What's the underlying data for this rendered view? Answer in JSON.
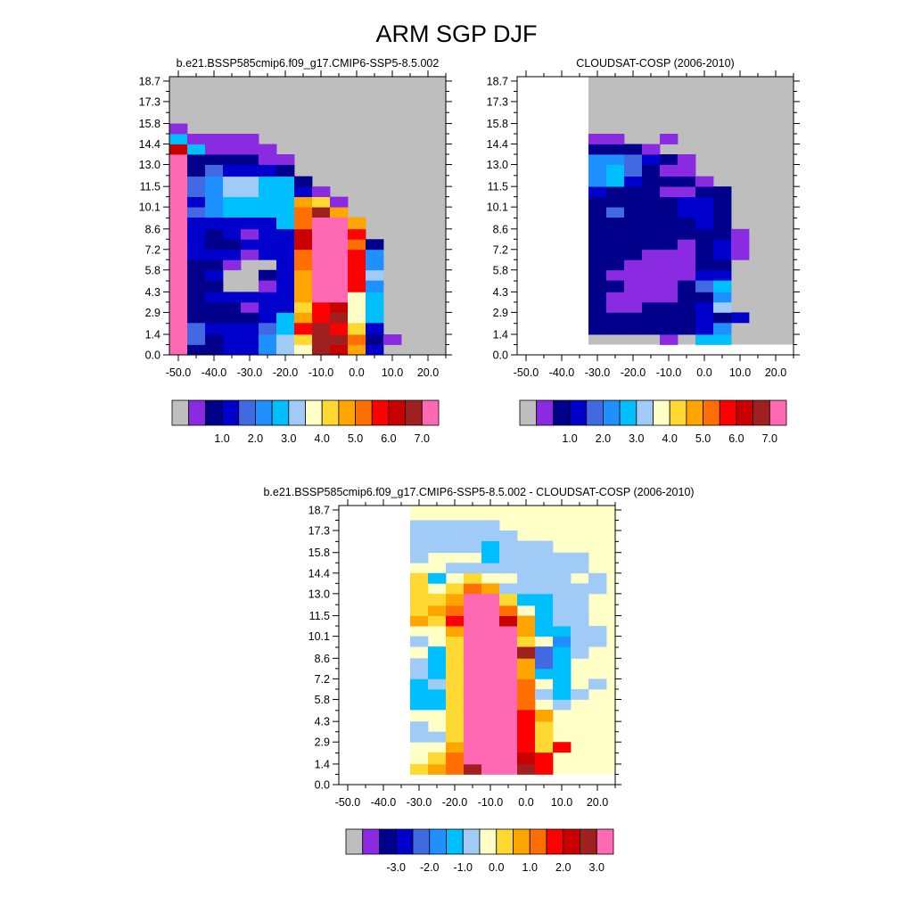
{
  "title": "ARM SGP DJF",
  "colors": {
    "missing": "#bebebe",
    "palette": [
      "#bebebe",
      "#8a2be2",
      "#00008b",
      "#0000cd",
      "#4169e1",
      "#1e90ff",
      "#00bfff",
      "#a0cbf6",
      "#ffffc8",
      "#ffd932",
      "#ffa500",
      "#ff6e00",
      "#ff0000",
      "#c80000",
      "#a02020",
      "#ff69b4"
    ]
  },
  "chart_data": [
    {
      "type": "heatmap",
      "title": "b.e21.BSSP585cmip6.f09_g17.CMIP6-SSP5-8.5.002",
      "xticks": [
        "-50.0",
        "-40.0",
        "-30.0",
        "-20.0",
        "-10.0",
        "0.0",
        "10.0",
        "20.0"
      ],
      "yticks": [
        "18.7",
        "17.3",
        "15.8",
        "14.4",
        "13.0",
        "11.5",
        "10.1",
        "8.6",
        "7.2",
        "5.8",
        "4.3",
        "2.9",
        "1.4",
        "0.0"
      ],
      "xlim": [
        -52.5,
        25.0
      ],
      "ylim": [
        0.0,
        19.0
      ],
      "colorbar": {
        "labels": [
          "1.0",
          "2.0",
          "3.0",
          "4.0",
          "5.0",
          "6.0",
          "7.0"
        ],
        "levels": [
          0.5,
          1.0,
          1.5,
          2.0,
          2.5,
          3.0,
          3.5,
          4.0,
          4.5,
          5.0,
          5.5,
          6.0,
          6.5,
          7.0
        ]
      },
      "x_edges": [
        -52.5,
        -47.5,
        -42.5,
        -37.5,
        -32.5,
        -27.5,
        -22.5,
        -17.5,
        -12.5,
        -7.5,
        -2.5,
        2.5,
        7.5,
        12.5,
        17.5,
        22.5,
        25.0
      ],
      "y_edges": [
        0.0,
        0.7,
        1.4,
        2.2,
        2.9,
        3.6,
        4.3,
        5.1,
        5.8,
        6.5,
        7.2,
        7.9,
        8.6,
        9.4,
        10.1,
        10.8,
        11.5,
        12.2,
        13.0,
        13.7,
        14.4,
        15.1,
        15.8,
        16.6,
        17.3,
        18.0,
        18.7,
        19.0
      ],
      "fill_value": 0,
      "rows": [
        [
          15,
          2,
          2,
          3,
          3,
          5,
          7,
          8,
          14,
          13,
          10,
          3,
          0,
          0,
          0,
          0
        ],
        [
          15,
          4,
          2,
          3,
          3,
          5,
          7,
          9,
          14,
          14,
          11,
          2,
          1,
          0,
          0,
          0
        ],
        [
          15,
          4,
          3,
          3,
          3,
          4,
          6,
          12,
          14,
          12,
          9,
          3,
          0,
          0,
          0,
          0
        ],
        [
          15,
          2,
          2,
          2,
          2,
          3,
          6,
          10,
          12,
          14,
          8,
          6,
          0,
          0,
          0,
          0
        ],
        [
          15,
          2,
          2,
          2,
          1,
          3,
          3,
          9,
          12,
          13,
          8,
          6,
          0,
          0,
          0,
          0
        ],
        [
          15,
          2,
          3,
          3,
          3,
          3,
          3,
          10,
          15,
          15,
          8,
          6,
          0,
          0,
          0,
          0
        ],
        [
          15,
          2,
          2,
          0,
          0,
          1,
          3,
          10,
          15,
          15,
          12,
          5,
          0,
          0,
          0,
          0
        ],
        [
          15,
          2,
          3,
          0,
          0,
          2,
          3,
          10,
          15,
          15,
          12,
          7,
          0,
          0,
          0,
          0
        ],
        [
          15,
          2,
          2,
          1,
          0,
          0,
          3,
          11,
          15,
          15,
          12,
          5,
          0,
          0,
          0,
          0
        ],
        [
          15,
          3,
          3,
          3,
          1,
          3,
          3,
          11,
          15,
          15,
          12,
          5,
          0,
          0,
          0,
          0
        ],
        [
          15,
          3,
          2,
          2,
          3,
          3,
          3,
          13,
          15,
          15,
          11,
          2,
          0,
          0,
          0,
          0
        ],
        [
          15,
          3,
          2,
          3,
          1,
          3,
          3,
          13,
          15,
          15,
          12,
          0,
          0,
          0,
          0,
          0
        ],
        [
          15,
          3,
          3,
          3,
          3,
          3,
          6,
          11,
          15,
          15,
          10,
          0,
          0,
          0,
          0,
          0
        ],
        [
          15,
          4,
          5,
          6,
          6,
          6,
          6,
          11,
          14,
          10,
          0,
          0,
          0,
          0,
          0,
          0
        ],
        [
          15,
          3,
          5,
          6,
          6,
          6,
          6,
          10,
          9,
          1,
          0,
          0,
          0,
          0,
          0,
          0
        ],
        [
          15,
          4,
          5,
          7,
          7,
          6,
          6,
          3,
          1,
          0,
          0,
          0,
          0,
          0,
          0,
          0
        ],
        [
          15,
          4,
          5,
          7,
          7,
          6,
          6,
          2,
          0,
          0,
          0,
          0,
          0,
          0,
          0,
          0
        ],
        [
          15,
          2,
          4,
          3,
          3,
          3,
          2,
          0,
          0,
          0,
          0,
          0,
          0,
          0,
          0,
          0
        ],
        [
          15,
          2,
          2,
          2,
          2,
          1,
          1,
          0,
          0,
          0,
          0,
          0,
          0,
          0,
          0,
          0
        ],
        [
          13,
          6,
          1,
          1,
          1,
          1,
          0,
          0,
          0,
          0,
          0,
          0,
          0,
          0,
          0,
          0
        ],
        [
          6,
          1,
          1,
          1,
          1,
          0,
          0,
          0,
          0,
          0,
          0,
          0,
          0,
          0,
          0,
          0
        ],
        [
          1,
          0,
          0,
          0,
          0,
          0,
          0,
          0,
          0,
          0,
          0,
          0,
          0,
          0,
          0,
          0
        ],
        [
          0,
          0,
          0,
          0,
          0,
          0,
          0,
          0,
          0,
          0,
          0,
          0,
          0,
          0,
          0,
          0
        ]
      ]
    },
    {
      "type": "heatmap",
      "title": "CLOUDSAT-COSP (2006-2010)",
      "xticks": [
        "-50.0",
        "-40.0",
        "-30.0",
        "-20.0",
        "-10.0",
        "0.0",
        "10.0",
        "20.0"
      ],
      "yticks": [
        "18.7",
        "17.3",
        "15.8",
        "14.4",
        "13.0",
        "11.5",
        "10.1",
        "8.6",
        "7.2",
        "5.8",
        "4.3",
        "2.9",
        "1.4",
        "0.0"
      ],
      "xlim": [
        -52.5,
        25.0
      ],
      "ylim": [
        0.0,
        19.0
      ],
      "colorbar": {
        "labels": [
          "1.0",
          "2.0",
          "3.0",
          "4.0",
          "5.0",
          "6.0",
          "7.0"
        ],
        "levels": [
          0.5,
          1.0,
          1.5,
          2.0,
          2.5,
          3.0,
          3.5,
          4.0,
          4.5,
          5.0,
          5.5,
          6.0,
          6.5,
          7.0
        ]
      },
      "x_edges": [
        -32.5,
        -27.5,
        -22.5,
        -17.5,
        -12.5,
        -7.5,
        -2.5,
        2.5,
        7.5,
        12.5,
        17.5,
        22.5,
        25.0
      ],
      "y_edges": [
        0.7,
        1.4,
        2.2,
        2.9,
        3.6,
        4.3,
        5.1,
        5.8,
        6.5,
        7.2,
        7.9,
        8.6,
        9.4,
        10.1,
        10.8,
        11.5,
        12.2,
        13.0,
        13.7,
        14.4,
        15.1,
        15.8,
        16.6,
        17.3,
        18.0,
        18.7,
        19.0
      ],
      "fill_value": 0,
      "blank_x_before": -32.5,
      "rows": [
        [
          0,
          0,
          0,
          0,
          1,
          0,
          6,
          6,
          0,
          0,
          0,
          0
        ],
        [
          2,
          2,
          2,
          2,
          2,
          2,
          3,
          5,
          0,
          0,
          0,
          0
        ],
        [
          2,
          2,
          2,
          2,
          2,
          2,
          3,
          2,
          3,
          0,
          0,
          0
        ],
        [
          2,
          1,
          1,
          2,
          2,
          2,
          3,
          7,
          0,
          0,
          0,
          0
        ],
        [
          2,
          1,
          1,
          1,
          1,
          2,
          2,
          5,
          0,
          0,
          0,
          0
        ],
        [
          2,
          2,
          1,
          1,
          1,
          2,
          4,
          6,
          0,
          0,
          0,
          0
        ],
        [
          2,
          1,
          1,
          1,
          1,
          1,
          3,
          3,
          0,
          0,
          0,
          0
        ],
        [
          2,
          2,
          1,
          1,
          1,
          1,
          2,
          2,
          0,
          0,
          0,
          0
        ],
        [
          2,
          2,
          2,
          1,
          1,
          1,
          2,
          3,
          1,
          0,
          0,
          0
        ],
        [
          2,
          2,
          2,
          2,
          2,
          1,
          2,
          3,
          1,
          0,
          0,
          0
        ],
        [
          2,
          2,
          2,
          2,
          2,
          2,
          2,
          2,
          1,
          0,
          0,
          0
        ],
        [
          2,
          2,
          2,
          2,
          2,
          2,
          3,
          2,
          0,
          0,
          0,
          0
        ],
        [
          2,
          4,
          2,
          2,
          2,
          3,
          3,
          2,
          0,
          0,
          0,
          0
        ],
        [
          2,
          2,
          2,
          2,
          2,
          3,
          3,
          2,
          0,
          0,
          0,
          0
        ],
        [
          3,
          2,
          2,
          2,
          1,
          1,
          2,
          2,
          0,
          0,
          0,
          0
        ],
        [
          5,
          6,
          3,
          2,
          2,
          2,
          1,
          0,
          0,
          0,
          0,
          0
        ],
        [
          5,
          6,
          4,
          2,
          1,
          1,
          0,
          0,
          0,
          0,
          0,
          0
        ],
        [
          5,
          5,
          4,
          3,
          2,
          1,
          0,
          0,
          0,
          0,
          0,
          0
        ],
        [
          2,
          2,
          2,
          1,
          0,
          0,
          0,
          0,
          0,
          0,
          0,
          0
        ],
        [
          1,
          1,
          0,
          0,
          1,
          0,
          0,
          0,
          0,
          0,
          0,
          0
        ],
        [
          0,
          0,
          0,
          0,
          0,
          0,
          0,
          0,
          0,
          0,
          0,
          0
        ]
      ]
    },
    {
      "type": "heatmap",
      "title": "b.e21.BSSP585cmip6.f09_g17.CMIP6-SSP5-8.5.002 - CLOUDSAT-COSP (2006-2010)",
      "xticks": [
        "-50.0",
        "-40.0",
        "-30.0",
        "-20.0",
        "-10.0",
        "0.0",
        "10.0",
        "20.0"
      ],
      "yticks": [
        "18.7",
        "17.3",
        "15.8",
        "14.4",
        "13.0",
        "11.5",
        "10.1",
        "8.6",
        "7.2",
        "5.8",
        "4.3",
        "2.9",
        "1.4",
        "0.0"
      ],
      "xlim": [
        -52.5,
        25.0
      ],
      "ylim": [
        0.0,
        19.0
      ],
      "colorbar": {
        "labels": [
          "-3.0",
          "-2.0",
          "-1.0",
          "0.0",
          "1.0",
          "2.0",
          "3.0"
        ],
        "levels": [
          -3.5,
          -3.0,
          -2.5,
          -2.0,
          -1.5,
          -1.0,
          -0.5,
          0.0,
          0.5,
          1.0,
          1.5,
          2.0,
          2.5,
          3.0
        ]
      },
      "x_edges": [
        -32.5,
        -27.5,
        -22.5,
        -17.5,
        -12.5,
        -7.5,
        -2.5,
        2.5,
        7.5,
        12.5,
        17.5,
        22.5,
        25.0
      ],
      "y_edges": [
        0.7,
        1.4,
        2.2,
        2.9,
        3.6,
        4.3,
        5.1,
        5.8,
        6.5,
        7.2,
        7.9,
        8.6,
        9.4,
        10.1,
        10.8,
        11.5,
        12.2,
        13.0,
        13.7,
        14.4,
        15.1,
        15.8,
        16.6,
        17.3,
        18.0,
        18.7,
        19.0
      ],
      "fill_value": 8,
      "blank_x_before": -32.5,
      "rows": [
        [
          9,
          10,
          11,
          14,
          15,
          15,
          14,
          12,
          8,
          8,
          8,
          8
        ],
        [
          8,
          9,
          11,
          15,
          15,
          15,
          13,
          12,
          8,
          8,
          8,
          8
        ],
        [
          8,
          8,
          10,
          15,
          15,
          15,
          12,
          9,
          12,
          8,
          8,
          8
        ],
        [
          7,
          7,
          9,
          15,
          15,
          15,
          12,
          9,
          8,
          8,
          8,
          8
        ],
        [
          7,
          8,
          9,
          15,
          15,
          15,
          12,
          9,
          8,
          8,
          8,
          8
        ],
        [
          8,
          8,
          9,
          15,
          15,
          15,
          12,
          10,
          8,
          8,
          8,
          8
        ],
        [
          6,
          6,
          9,
          15,
          15,
          15,
          11,
          8,
          7,
          8,
          8,
          8
        ],
        [
          6,
          6,
          9,
          15,
          15,
          15,
          11,
          7,
          6,
          7,
          8,
          8
        ],
        [
          6,
          7,
          9,
          15,
          15,
          15,
          11,
          8,
          6,
          8,
          7,
          8
        ],
        [
          7,
          6,
          9,
          15,
          15,
          15,
          10,
          6,
          6,
          8,
          8,
          8
        ],
        [
          7,
          6,
          9,
          15,
          15,
          15,
          10,
          4,
          6,
          8,
          8,
          8
        ],
        [
          8,
          6,
          9,
          15,
          15,
          15,
          14,
          4,
          6,
          7,
          8,
          8
        ],
        [
          7,
          8,
          9,
          15,
          15,
          15,
          9,
          8,
          5,
          7,
          7,
          8
        ],
        [
          8,
          8,
          10,
          15,
          15,
          15,
          10,
          6,
          6,
          7,
          7,
          8
        ],
        [
          10,
          9,
          12,
          15,
          15,
          13,
          10,
          6,
          7,
          7,
          8,
          8
        ],
        [
          9,
          10,
          11,
          15,
          15,
          11,
          8,
          6,
          7,
          7,
          8,
          8
        ],
        [
          9,
          9,
          10,
          15,
          15,
          9,
          6,
          6,
          7,
          7,
          8,
          8
        ],
        [
          9,
          8,
          9,
          11,
          10,
          7,
          7,
          7,
          7,
          7,
          7,
          8
        ],
        [
          9,
          6,
          8,
          9,
          8,
          8,
          7,
          7,
          7,
          8,
          7,
          8
        ],
        [
          8,
          8,
          7,
          7,
          7,
          7,
          7,
          7,
          7,
          7,
          8,
          8
        ],
        [
          7,
          8,
          8,
          8,
          6,
          7,
          7,
          7,
          7,
          7,
          8,
          8
        ],
        [
          7,
          7,
          7,
          7,
          6,
          7,
          7,
          7,
          8,
          8,
          8,
          8
        ],
        [
          7,
          7,
          7,
          7,
          7,
          7,
          8,
          8,
          8,
          8,
          8,
          8
        ],
        [
          7,
          7,
          7,
          7,
          7,
          8,
          8,
          8,
          8,
          8,
          8,
          8
        ],
        [
          8,
          8,
          8,
          8,
          8,
          8,
          8,
          8,
          8,
          8,
          8,
          8
        ],
        [
          8,
          8,
          8,
          8,
          8,
          8,
          8,
          8,
          8,
          8,
          8,
          8
        ]
      ]
    }
  ]
}
